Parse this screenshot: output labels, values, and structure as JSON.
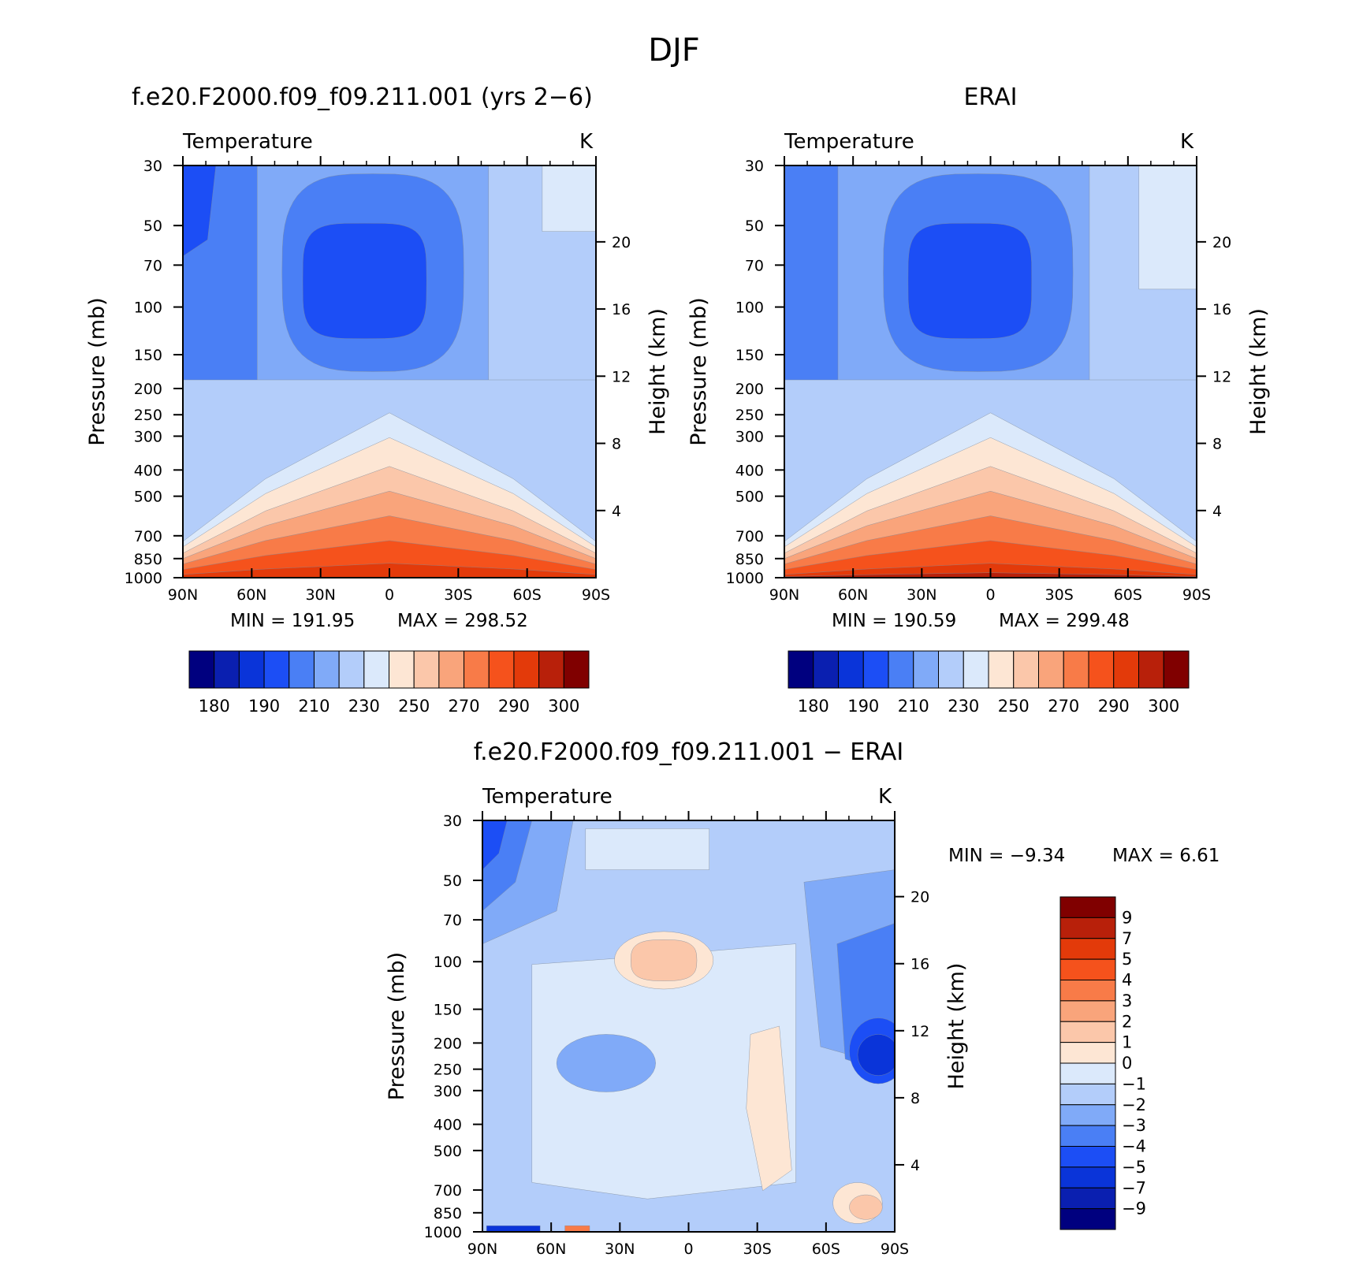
{
  "figure": {
    "title": "DJF"
  },
  "chart_data": [
    {
      "type": "heatmap",
      "title": "f.e20.F2000.f09_f09.211.001 (yrs 2−6)",
      "variable": "Temperature",
      "units": "K",
      "xlabel": "",
      "ylabel": "Pressure (mb)",
      "ylabel_right": "Height (km)",
      "x_ticks": [
        "90N",
        "60N",
        "30N",
        "0",
        "30S",
        "60S",
        "90S"
      ],
      "y_ticks": [
        30,
        50,
        70,
        100,
        150,
        200,
        250,
        300,
        400,
        500,
        700,
        850,
        1000
      ],
      "y_scale": "log",
      "ylim": [
        1000,
        30
      ],
      "height_ticks": [
        4,
        8,
        12,
        16,
        20
      ],
      "stats": {
        "min_label": "MIN",
        "max_label": "MAX",
        "min": "191.95",
        "max": "298.52"
      },
      "colorbar": {
        "orientation": "horizontal",
        "labels": [
          "180",
          "190",
          "210",
          "230",
          "250",
          "270",
          "290",
          "300"
        ]
      }
    },
    {
      "type": "heatmap",
      "title": "ERAI",
      "variable": "Temperature",
      "units": "K",
      "xlabel": "",
      "ylabel": "Pressure (mb)",
      "ylabel_right": "Height (km)",
      "x_ticks": [
        "90N",
        "60N",
        "30N",
        "0",
        "30S",
        "60S",
        "90S"
      ],
      "y_ticks": [
        30,
        50,
        70,
        100,
        150,
        200,
        250,
        300,
        400,
        500,
        700,
        850,
        1000
      ],
      "y_scale": "log",
      "ylim": [
        1000,
        30
      ],
      "height_ticks": [
        4,
        8,
        12,
        16,
        20
      ],
      "stats": {
        "min_label": "MIN",
        "max_label": "MAX",
        "min": "190.59",
        "max": "299.48"
      },
      "colorbar": {
        "orientation": "horizontal",
        "labels": [
          "180",
          "190",
          "210",
          "230",
          "250",
          "270",
          "290",
          "300"
        ]
      }
    },
    {
      "type": "heatmap",
      "title": "f.e20.F2000.f09_f09.211.001 − ERAI",
      "variable": "Temperature",
      "units": "K",
      "xlabel": "",
      "ylabel": "Pressure (mb)",
      "ylabel_right": "Height (km)",
      "x_ticks": [
        "90N",
        "60N",
        "30N",
        "0",
        "30S",
        "60S",
        "90S"
      ],
      "y_ticks": [
        30,
        50,
        70,
        100,
        150,
        200,
        250,
        300,
        400,
        500,
        700,
        850,
        1000
      ],
      "y_scale": "log",
      "ylim": [
        1000,
        30
      ],
      "height_ticks": [
        4,
        8,
        12,
        16,
        20
      ],
      "stats": {
        "min_label": "MIN",
        "max_label": "MAX",
        "min": "−9.34",
        "max": "6.61"
      },
      "colorbar": {
        "orientation": "vertical",
        "labels": [
          "9",
          "7",
          "5",
          "4",
          "3",
          "2",
          "1",
          "0",
          "−1",
          "−2",
          "−3",
          "−4",
          "−5",
          "−7",
          "−9"
        ]
      }
    }
  ],
  "colormap": [
    "#00007f",
    "#0a1fb0",
    "#0a34d9",
    "#1c4ef5",
    "#4a7ff5",
    "#80aaf8",
    "#b3cdfa",
    "#dbe9fb",
    "#fde6d4",
    "#fbc7aa",
    "#f9a47b",
    "#f87b48",
    "#f5521c",
    "#e33a0a",
    "#b8200a",
    "#800000"
  ]
}
